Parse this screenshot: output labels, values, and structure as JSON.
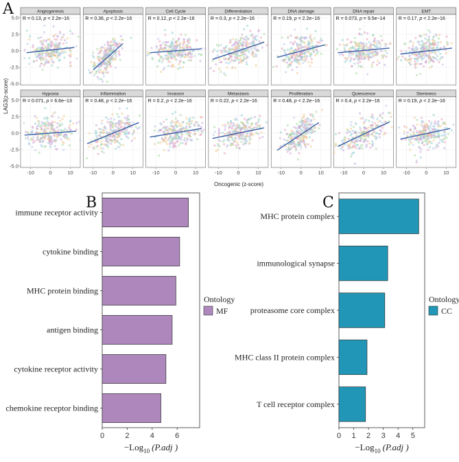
{
  "figure": {
    "panel_labels": {
      "a": "A",
      "b": "B",
      "c": "C"
    }
  },
  "chart_data": [
    {
      "id": "A",
      "type": "scatter",
      "title": "",
      "xlabel": "Oncogenic (z-score)",
      "ylabel": "LAG3(z-score)",
      "xlim": [
        -15,
        15
      ],
      "ylim": [
        -5.2,
        5.5
      ],
      "xticks": [
        -10,
        0,
        10
      ],
      "yticks": [
        -5.0,
        -2.5,
        0.0,
        2.5,
        5.0
      ],
      "ytick_labels": [
        "-5.0",
        "-2.5",
        "0.0",
        "2.5",
        "5.0"
      ],
      "grid": true,
      "point_colors": [
        "#e8a0b8",
        "#a8d8a0",
        "#b8c8e8",
        "#f0c890",
        "#c8a8e0",
        "#90d0d0"
      ],
      "line_color": "#3a5fa8",
      "facets": [
        {
          "name": "Angiogenesis",
          "r": "R = 0.13,",
          "p": "p < 2.2e−16",
          "x_range": [
            -12,
            12
          ],
          "line": [
            [
              -12,
              -0.3
            ],
            [
              12,
              0.5
            ]
          ]
        },
        {
          "name": "Apoptosis",
          "r": "R = 0.36,",
          "p": "p < 2.2e−16",
          "x_range": [
            -11,
            5
          ],
          "line": [
            [
              -10,
              -2.9
            ],
            [
              5,
              1.1
            ]
          ]
        },
        {
          "name": "Cell Cycle",
          "r": "R = 0.12,",
          "p": "p < 2.2e−16",
          "x_range": [
            -12,
            12
          ],
          "line": [
            [
              -13,
              -0.3
            ],
            [
              13,
              0.3
            ]
          ]
        },
        {
          "name": "Differentiation",
          "r": "R = 0.3,",
          "p": "p < 2.2e−16",
          "x_range": [
            -12,
            12
          ],
          "line": [
            [
              -13,
              -1.3
            ],
            [
              13,
              1.3
            ]
          ]
        },
        {
          "name": "DNA damage",
          "r": "R = 0.19,",
          "p": "p < 2.2e−16",
          "x_range": [
            -10,
            10
          ],
          "line": [
            [
              -12,
              -1.0
            ],
            [
              12,
              0.9
            ]
          ]
        },
        {
          "name": "DNA repair",
          "r": "R = 0.073,",
          "p": "p = 9.5e−14",
          "x_range": [
            -12,
            12
          ],
          "line": [
            [
              -13,
              -0.3
            ],
            [
              13,
              0.4
            ]
          ]
        },
        {
          "name": "EMT",
          "r": "R = 0.17,",
          "p": "p < 2.2e−16",
          "x_range": [
            -12,
            12
          ],
          "line": [
            [
              -13,
              -0.5
            ],
            [
              13,
              0.4
            ]
          ]
        },
        {
          "name": "Hypoxia",
          "r": "R = 0.071,",
          "p": "p = 6.6e−13",
          "x_range": [
            -12,
            12
          ],
          "line": [
            [
              -13,
              -0.3
            ],
            [
              13,
              0.3
            ]
          ]
        },
        {
          "name": "Inflammation",
          "r": "R = 0.48,",
          "p": "p < 2.2e−16",
          "x_range": [
            -12,
            12
          ],
          "line": [
            [
              -13,
              -1.6
            ],
            [
              13,
              1.6
            ]
          ]
        },
        {
          "name": "Invasion",
          "r": "R = 0.2,",
          "p": "p < 2.2e−16",
          "x_range": [
            -12,
            12
          ],
          "line": [
            [
              -13,
              -0.6
            ],
            [
              13,
              0.7
            ]
          ]
        },
        {
          "name": "Metastasis",
          "r": "R = 0.22,",
          "p": "p < 2.2e−16",
          "x_range": [
            -12,
            12
          ],
          "line": [
            [
              -13,
              -0.8
            ],
            [
              13,
              0.8
            ]
          ]
        },
        {
          "name": "Proliferation",
          "r": "R = 0.48,",
          "p": "p < 2.2e−16",
          "x_range": [
            -10,
            8
          ],
          "line": [
            [
              -12,
              -2.6
            ],
            [
              9,
              1.6
            ]
          ]
        },
        {
          "name": "Quiescence",
          "r": "R = 0.4,",
          "p": "p < 2.2e−16",
          "x_range": [
            -12,
            12
          ],
          "line": [
            [
              -13,
              -2.0
            ],
            [
              13,
              1.7
            ]
          ]
        },
        {
          "name": "Stemness",
          "r": "R = 0.19,",
          "p": "p < 2.2e−16",
          "x_range": [
            -12,
            12
          ],
          "line": [
            [
              -13,
              -0.9
            ],
            [
              12,
              0.7
            ]
          ]
        }
      ]
    },
    {
      "id": "B",
      "type": "bar",
      "orientation": "horizontal",
      "categories": [
        "immune receptor activity",
        "cytokine binding",
        "MHC protein binding",
        "antigen binding",
        "cytokine receptor activity",
        "chemokine receptor binding"
      ],
      "values": [
        6.9,
        6.2,
        5.9,
        5.6,
        5.1,
        4.7
      ],
      "xlim": [
        0,
        7.8
      ],
      "xticks": [
        0,
        2,
        4,
        6
      ],
      "xlabel": "−Log",
      "xlabel_sub": "10",
      "xlabel_tail": "(P.adj )",
      "bar_color": "#ae88bd",
      "legend": {
        "title": "Ontology",
        "label": "MF",
        "color": "#ae88bd"
      }
    },
    {
      "id": "C",
      "type": "bar",
      "orientation": "horizontal",
      "categories": [
        "MHC protein complex",
        "immunological synapse",
        "proteasome core complex",
        "MHC class II protein complex",
        "T cell receptor complex"
      ],
      "values": [
        5.4,
        3.3,
        3.1,
        1.9,
        1.8
      ],
      "xlim": [
        0,
        5.8
      ],
      "xticks": [
        0,
        1,
        2,
        3,
        4,
        5
      ],
      "xlabel": "−Log",
      "xlabel_sub": "10",
      "xlabel_tail": "(P.adj )",
      "bar_color": "#2196b6",
      "legend": {
        "title": "Ontology",
        "label": "CC",
        "color": "#2196b6"
      }
    }
  ]
}
